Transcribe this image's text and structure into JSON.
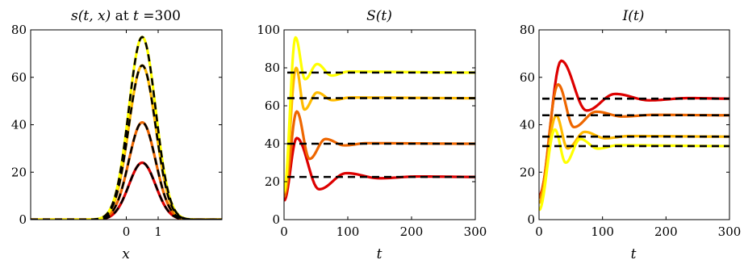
{
  "chart_data": [
    {
      "type": "line",
      "title_parts": {
        "expr": "s(t, x)",
        "mid": " at ",
        "var": "t",
        "rest": " =300"
      },
      "xlabel": "x",
      "ylabel": "",
      "xlim": [
        -3,
        3
      ],
      "ylim": [
        0,
        80
      ],
      "xticks": [
        0,
        1
      ],
      "yticks": [
        0,
        20,
        40,
        60,
        80
      ],
      "grid": false,
      "legend": "none",
      "gaussian_center": 0.5,
      "gaussian_sigma": 0.42,
      "series": [
        {
          "color": "#dd0000",
          "peak": 24,
          "equilibrium_peak": 24
        },
        {
          "color": "#ee6600",
          "peak": 41,
          "equilibrium_peak": 41
        },
        {
          "color": "#ffbb00",
          "peak": 65,
          "equilibrium_peak": 65
        },
        {
          "color": "#ffff00",
          "peak": 77,
          "equilibrium_peak": 77
        }
      ]
    },
    {
      "type": "line",
      "title_parts": {
        "expr": "S(t)"
      },
      "xlabel": "t",
      "ylabel": "",
      "xlim": [
        0,
        300
      ],
      "ylim": [
        0,
        100
      ],
      "xticks": [
        0,
        100,
        200,
        300
      ],
      "yticks": [
        0,
        20,
        40,
        60,
        80,
        100
      ],
      "grid": false,
      "legend": "none",
      "series": [
        {
          "color": "#dd0000",
          "equilibrium": 22.5,
          "start": 10,
          "peak": 43,
          "peak_t": 20,
          "trough": 16,
          "trough_t": 55,
          "second": 24.5,
          "second_t": 98
        },
        {
          "color": "#ee6600",
          "equilibrium": 40,
          "start": 12,
          "peak": 57,
          "peak_t": 20,
          "trough": 32,
          "trough_t": 40,
          "second": 42.5,
          "second_t": 65
        },
        {
          "color": "#ffbb00",
          "equilibrium": 64,
          "start": 14,
          "peak": 80,
          "peak_t": 19,
          "trough": 58,
          "trough_t": 32,
          "second": 67,
          "second_t": 52
        },
        {
          "color": "#ffff00",
          "equilibrium": 77.5,
          "start": 15,
          "peak": 96,
          "peak_t": 18,
          "trough": 74,
          "trough_t": 33,
          "second": 82,
          "second_t": 52
        }
      ]
    },
    {
      "type": "line",
      "title_parts": {
        "expr": "I(t)"
      },
      "xlabel": "t",
      "ylabel": "",
      "xlim": [
        0,
        300
      ],
      "ylim": [
        0,
        80
      ],
      "xticks": [
        0,
        100,
        200,
        300
      ],
      "yticks": [
        0,
        20,
        40,
        60,
        80
      ],
      "grid": false,
      "legend": "none",
      "series": [
        {
          "color": "#dd0000",
          "equilibrium": 51,
          "start": 10,
          "peak": 67,
          "peak_t": 35,
          "trough": 46,
          "trough_t": 75,
          "second": 53,
          "second_t": 120
        },
        {
          "color": "#ee6600",
          "equilibrium": 44,
          "start": 9,
          "peak": 57,
          "peak_t": 30,
          "trough": 39,
          "trough_t": 55,
          "second": 45.5,
          "second_t": 90
        },
        {
          "color": "#ffbb00",
          "equilibrium": 35,
          "start": 7,
          "peak": 44,
          "peak_t": 27,
          "trough": 30,
          "trough_t": 45,
          "second": 37,
          "second_t": 72
        },
        {
          "color": "#ffff00",
          "equilibrium": 31,
          "start": 4,
          "peak": 38,
          "peak_t": 25,
          "trough": 24,
          "trough_t": 42,
          "second": 34,
          "second_t": 65
        }
      ]
    }
  ]
}
